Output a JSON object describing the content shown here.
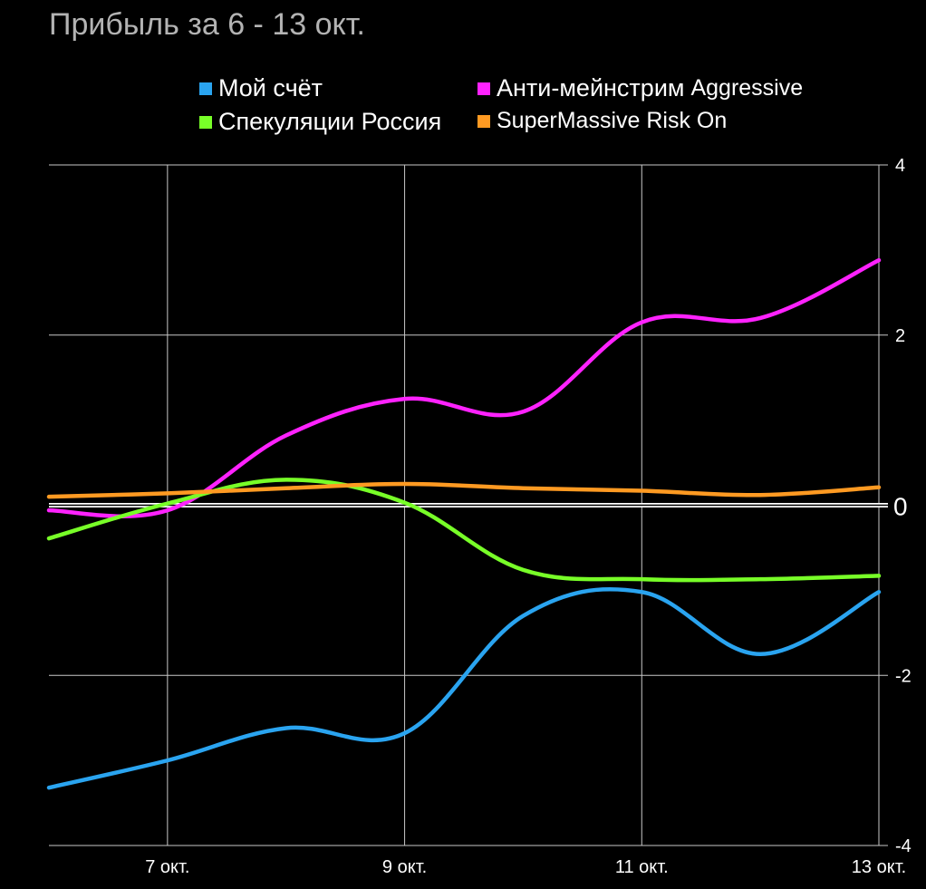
{
  "title": "Прибыль за 6 - 13 окт.",
  "chart_data": {
    "type": "line",
    "x_ticks": [
      7,
      9,
      11,
      13
    ],
    "x_tick_labels": [
      "7 окт.",
      "9 окт.",
      "11 окт.",
      "13 окт."
    ],
    "y_ticks": [
      4,
      2,
      0,
      -2,
      -4
    ],
    "y_tick_labels": [
      "4",
      "2",
      "0",
      "-2",
      "-4"
    ],
    "xlim": [
      6,
      13
    ],
    "ylim": [
      -4,
      4
    ],
    "grid": true,
    "zero_line": true,
    "series": [
      {
        "name": "Мой счёт",
        "color": "#2aa4f0",
        "x": [
          6,
          7,
          8,
          9,
          10,
          11,
          12,
          13
        ],
        "values": [
          -3.32,
          -3.0,
          -2.62,
          -2.68,
          -1.3,
          -1.02,
          -1.75,
          -1.02
        ]
      },
      {
        "name": "Анти-мейнстрим",
        "suffix": "Aggressive",
        "color": "#ff22ff",
        "x": [
          6,
          7,
          8,
          9,
          10,
          11,
          12,
          13
        ],
        "values": [
          -0.06,
          -0.06,
          0.82,
          1.25,
          1.1,
          2.15,
          2.2,
          2.88
        ]
      },
      {
        "name": "Спекуляции Россия",
        "color": "#78ff28",
        "x": [
          6,
          7,
          8,
          9,
          10,
          11,
          12,
          13
        ],
        "values": [
          -0.39,
          0.02,
          0.3,
          0.03,
          -0.76,
          -0.87,
          -0.87,
          -0.83
        ]
      },
      {
        "name": "SuperMassive Risk On",
        "color": "#ff9a22",
        "x": [
          6,
          7,
          8,
          9,
          10,
          11,
          12,
          13
        ],
        "values": [
          0.1,
          0.14,
          0.2,
          0.25,
          0.2,
          0.17,
          0.12,
          0.21
        ]
      }
    ]
  }
}
